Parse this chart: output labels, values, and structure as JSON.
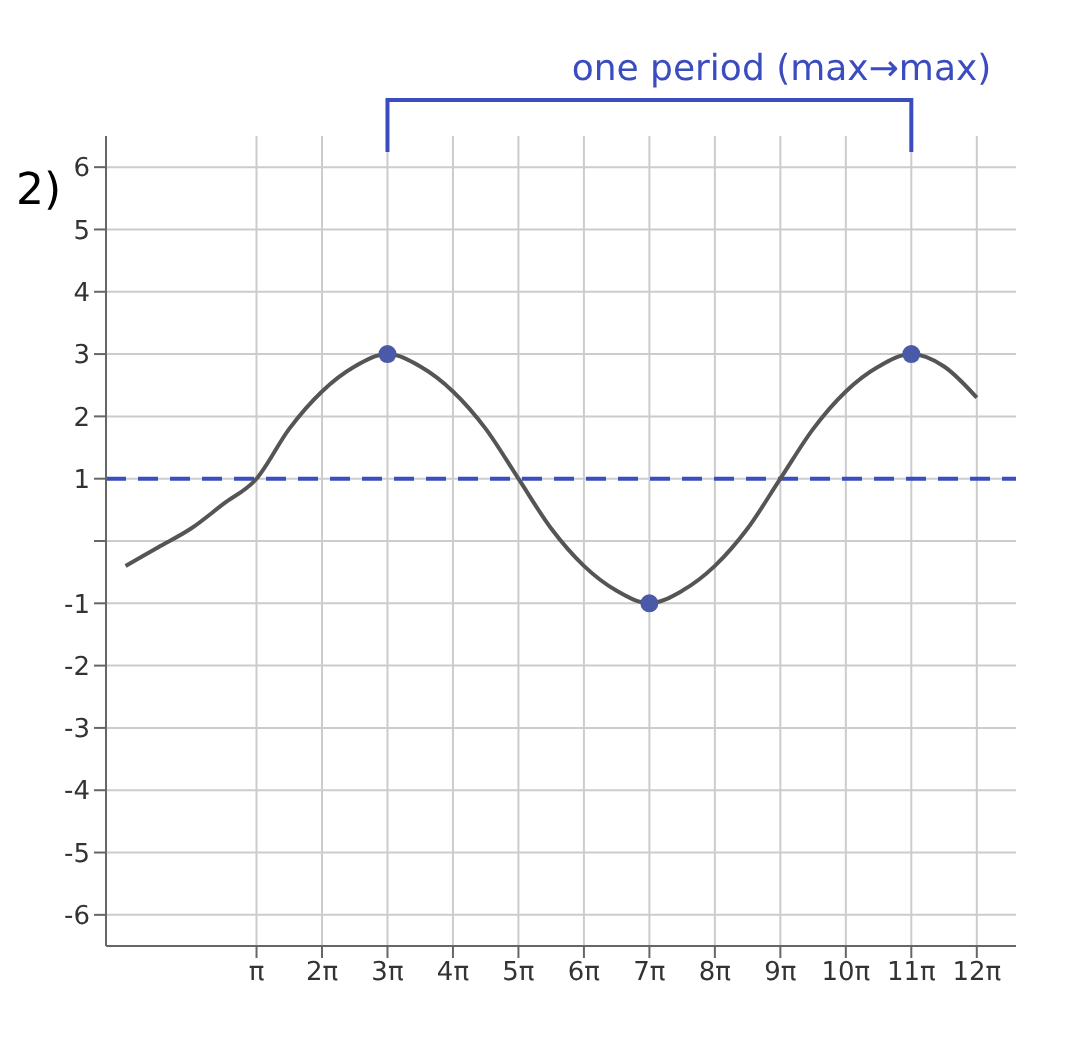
{
  "chart_data": {
    "type": "line",
    "title": "2)",
    "annotations": [
      "one period (max→max)"
    ],
    "xlim": [
      -4.08,
      39.58
    ],
    "xticks": [
      {
        "value": 3.1416,
        "label": "π"
      },
      {
        "value": 6.2832,
        "label": "2π"
      },
      {
        "value": 9.4248,
        "label": "3π"
      },
      {
        "value": 12.5664,
        "label": "4π"
      },
      {
        "value": 15.708,
        "label": "5π"
      },
      {
        "value": 18.8496,
        "label": "6π"
      },
      {
        "value": 21.9911,
        "label": "7π"
      },
      {
        "value": 25.1327,
        "label": "8π"
      },
      {
        "value": 28.2743,
        "label": "9π"
      },
      {
        "value": 31.4159,
        "label": "10π"
      },
      {
        "value": 34.5575,
        "label": "11π"
      },
      {
        "value": 37.6991,
        "label": "12π"
      }
    ],
    "ylim": [
      -6.5,
      6.5
    ],
    "yticks": [
      -6,
      -5,
      -4,
      -3,
      -2,
      -1,
      {
        "value": 0,
        "label": null
      },
      1,
      2,
      3,
      4,
      5,
      6
    ],
    "grid": true,
    "marker": "none",
    "line_style": "solid",
    "series": [
      {
        "color": "#555555",
        "x": [
          -3.14,
          -1.57,
          0,
          1.57,
          3.1416,
          4.71,
          6.2832,
          7.85,
          9.4248,
          11.0,
          12.5664,
          14.14,
          15.708,
          17.28,
          18.8496,
          20.42,
          21.9911,
          23.56,
          25.1327,
          26.7,
          28.2743,
          29.85,
          31.4159,
          32.99,
          34.5575,
          36.13,
          37.6991
        ],
        "values": [
          -0.4,
          -0.1,
          0.2,
          0.6,
          1,
          1.8,
          2.4,
          2.8,
          3,
          2.8,
          2.4,
          1.8,
          1,
          0.2,
          -0.4,
          -0.8,
          -1,
          -0.8,
          -0.4,
          0.2,
          1,
          1.8,
          2.4,
          2.8,
          3,
          2.8,
          2.3
        ]
      },
      {
        "type": "scatter",
        "color": "#4a5aa8",
        "marker": "circle",
        "x": [
          9.4248,
          21.9911,
          34.5575
        ],
        "values": [
          3,
          -1,
          3
        ]
      }
    ],
    "ref_lines": [
      {
        "axis": "y",
        "value": 1,
        "color": "#3b4cc0",
        "line_style": "dashed"
      }
    ]
  }
}
